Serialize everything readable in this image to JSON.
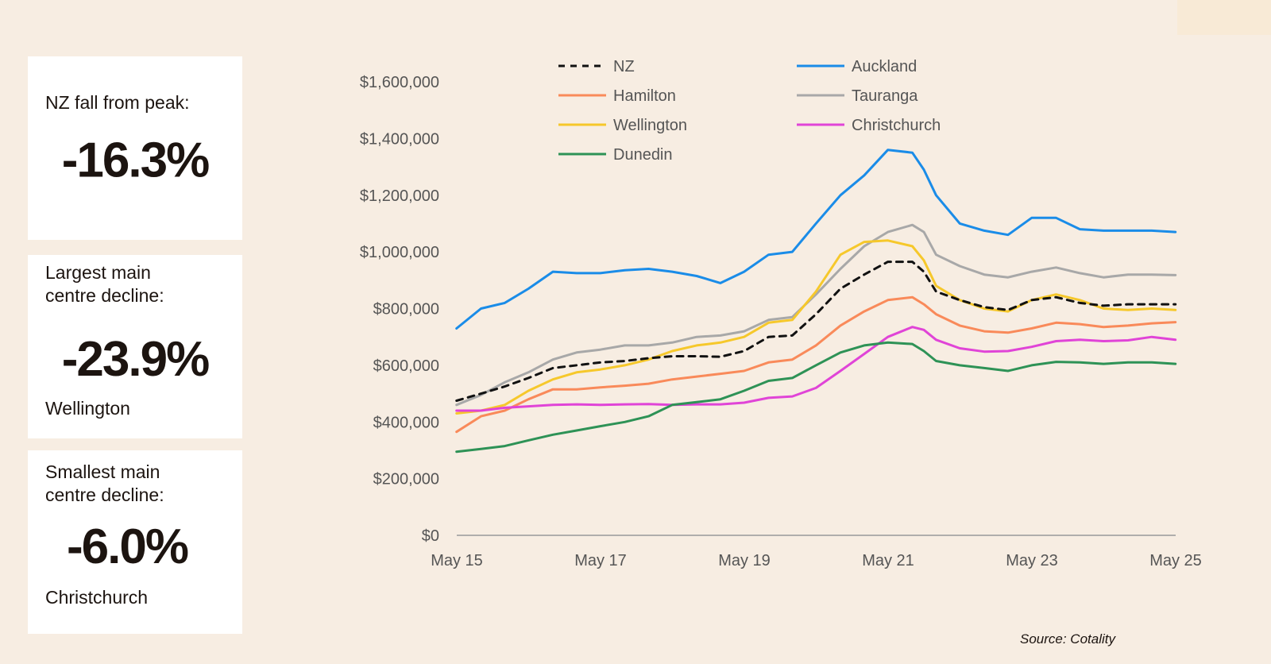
{
  "cards": [
    {
      "label": "NZ fall from peak:",
      "value": "-16.3%",
      "sub": ""
    },
    {
      "label": "Largest main centre decline:",
      "value": "-23.9%",
      "sub": "Wellington"
    },
    {
      "label": "Smallest main centre decline:",
      "value": "-6.0%",
      "sub": "Christchurch"
    }
  ],
  "source": "Source: Cotality",
  "chart_data": {
    "type": "line",
    "x_labels": [
      "May 15",
      "May 17",
      "May 19",
      "May 21",
      "May 23",
      "May 25"
    ],
    "y_ticks": [
      0,
      200000,
      400000,
      600000,
      800000,
      1000000,
      1200000,
      1400000,
      1600000
    ],
    "y_tick_labels": [
      "$0",
      "$200,000",
      "$400,000",
      "$600,000",
      "$800,000",
      "$1,000,000",
      "$1,200,000",
      "$1,400,000",
      "$1,600,000"
    ],
    "ylim": [
      0,
      1600000
    ],
    "x_range": [
      2015.333,
      2025.333
    ],
    "legend_position": "top",
    "grid": false,
    "series": [
      {
        "name": "NZ",
        "color": "#111111",
        "dashed": true,
        "x": [
          2015.33,
          2015.67,
          2016.0,
          2016.33,
          2016.67,
          2017.0,
          2017.33,
          2017.67,
          2018.0,
          2018.33,
          2018.67,
          2019.0,
          2019.33,
          2019.67,
          2020.0,
          2020.33,
          2020.67,
          2021.0,
          2021.33,
          2021.67,
          2021.83,
          2022.0,
          2022.33,
          2022.67,
          2023.0,
          2023.33,
          2023.67,
          2024.0,
          2024.33,
          2024.67,
          2025.0,
          2025.33
        ],
        "y": [
          475000,
          500000,
          525000,
          555000,
          590000,
          600000,
          610000,
          615000,
          625000,
          632000,
          632000,
          630000,
          650000,
          700000,
          705000,
          780000,
          870000,
          920000,
          965000,
          965000,
          930000,
          860000,
          830000,
          805000,
          795000,
          830000,
          840000,
          820000,
          810000,
          815000,
          815000,
          815000
        ]
      },
      {
        "name": "Auckland",
        "color": "#1a8ce8",
        "dashed": false,
        "x": [
          2015.33,
          2015.67,
          2016.0,
          2016.33,
          2016.67,
          2017.0,
          2017.33,
          2017.67,
          2018.0,
          2018.33,
          2018.67,
          2019.0,
          2019.33,
          2019.67,
          2020.0,
          2020.33,
          2020.67,
          2021.0,
          2021.33,
          2021.67,
          2021.83,
          2022.0,
          2022.33,
          2022.67,
          2023.0,
          2023.33,
          2023.67,
          2024.0,
          2024.33,
          2024.67,
          2025.0,
          2025.33
        ],
        "y": [
          730000,
          800000,
          820000,
          870000,
          930000,
          925000,
          925000,
          935000,
          940000,
          930000,
          915000,
          890000,
          930000,
          990000,
          1000000,
          1100000,
          1200000,
          1270000,
          1360000,
          1350000,
          1290000,
          1200000,
          1100000,
          1075000,
          1060000,
          1120000,
          1120000,
          1080000,
          1075000,
          1075000,
          1075000,
          1070000
        ]
      },
      {
        "name": "Hamilton",
        "color": "#f98a5a",
        "dashed": false,
        "x": [
          2015.33,
          2015.67,
          2016.0,
          2016.33,
          2016.67,
          2017.0,
          2017.33,
          2017.67,
          2018.0,
          2018.33,
          2018.67,
          2019.0,
          2019.33,
          2019.67,
          2020.0,
          2020.33,
          2020.67,
          2021.0,
          2021.33,
          2021.67,
          2021.83,
          2022.0,
          2022.33,
          2022.67,
          2023.0,
          2023.33,
          2023.67,
          2024.0,
          2024.33,
          2024.67,
          2025.0,
          2025.33
        ],
        "y": [
          365000,
          420000,
          440000,
          480000,
          515000,
          515000,
          522000,
          528000,
          535000,
          550000,
          560000,
          570000,
          580000,
          610000,
          620000,
          670000,
          740000,
          790000,
          830000,
          840000,
          815000,
          780000,
          740000,
          720000,
          715000,
          730000,
          750000,
          745000,
          735000,
          740000,
          748000,
          752000
        ]
      },
      {
        "name": "Tauranga",
        "color": "#a8a8a8",
        "dashed": false,
        "x": [
          2015.33,
          2015.67,
          2016.0,
          2016.33,
          2016.67,
          2017.0,
          2017.33,
          2017.67,
          2018.0,
          2018.33,
          2018.67,
          2019.0,
          2019.33,
          2019.67,
          2020.0,
          2020.33,
          2020.67,
          2021.0,
          2021.33,
          2021.67,
          2021.83,
          2022.0,
          2022.33,
          2022.67,
          2023.0,
          2023.33,
          2023.67,
          2024.0,
          2024.33,
          2024.67,
          2025.0,
          2025.33
        ],
        "y": [
          460000,
          495000,
          540000,
          575000,
          620000,
          645000,
          655000,
          670000,
          670000,
          680000,
          700000,
          705000,
          720000,
          760000,
          770000,
          850000,
          940000,
          1020000,
          1070000,
          1095000,
          1070000,
          990000,
          950000,
          920000,
          910000,
          930000,
          945000,
          925000,
          910000,
          920000,
          920000,
          918000
        ]
      },
      {
        "name": "Wellington",
        "color": "#f6c82b",
        "dashed": false,
        "x": [
          2015.33,
          2015.67,
          2016.0,
          2016.33,
          2016.67,
          2017.0,
          2017.33,
          2017.67,
          2018.0,
          2018.33,
          2018.67,
          2019.0,
          2019.33,
          2019.67,
          2020.0,
          2020.33,
          2020.67,
          2021.0,
          2021.33,
          2021.67,
          2021.83,
          2022.0,
          2022.33,
          2022.67,
          2023.0,
          2023.33,
          2023.67,
          2024.0,
          2024.33,
          2024.67,
          2025.0,
          2025.33
        ],
        "y": [
          430000,
          440000,
          460000,
          510000,
          550000,
          575000,
          585000,
          600000,
          620000,
          650000,
          670000,
          680000,
          700000,
          750000,
          760000,
          860000,
          990000,
          1035000,
          1040000,
          1020000,
          970000,
          880000,
          830000,
          800000,
          790000,
          830000,
          850000,
          830000,
          800000,
          795000,
          800000,
          795000
        ]
      },
      {
        "name": "Christchurch",
        "color": "#e044d7",
        "dashed": false,
        "x": [
          2015.33,
          2015.67,
          2016.0,
          2016.33,
          2016.67,
          2017.0,
          2017.33,
          2017.67,
          2018.0,
          2018.33,
          2018.67,
          2019.0,
          2019.33,
          2019.67,
          2020.0,
          2020.33,
          2020.67,
          2021.0,
          2021.33,
          2021.67,
          2021.83,
          2022.0,
          2022.33,
          2022.67,
          2023.0,
          2023.33,
          2023.67,
          2024.0,
          2024.33,
          2024.67,
          2025.0,
          2025.33
        ],
        "y": [
          440000,
          440000,
          450000,
          455000,
          460000,
          462000,
          460000,
          462000,
          463000,
          460000,
          462000,
          462000,
          468000,
          485000,
          490000,
          520000,
          580000,
          640000,
          700000,
          735000,
          725000,
          690000,
          660000,
          648000,
          650000,
          665000,
          685000,
          690000,
          685000,
          688000,
          700000,
          690000
        ]
      },
      {
        "name": "Dunedin",
        "color": "#2e9256",
        "dashed": false,
        "x": [
          2015.33,
          2015.67,
          2016.0,
          2016.33,
          2016.67,
          2017.0,
          2017.33,
          2017.67,
          2018.0,
          2018.33,
          2018.67,
          2019.0,
          2019.33,
          2019.67,
          2020.0,
          2020.33,
          2020.67,
          2021.0,
          2021.33,
          2021.67,
          2021.83,
          2022.0,
          2022.33,
          2022.67,
          2023.0,
          2023.33,
          2023.67,
          2024.0,
          2024.33,
          2024.67,
          2025.0,
          2025.33
        ],
        "y": [
          295000,
          305000,
          315000,
          335000,
          355000,
          370000,
          385000,
          400000,
          420000,
          460000,
          470000,
          480000,
          510000,
          545000,
          555000,
          600000,
          645000,
          670000,
          680000,
          675000,
          650000,
          615000,
          600000,
          590000,
          580000,
          600000,
          612000,
          610000,
          605000,
          610000,
          610000,
          605000
        ]
      }
    ]
  }
}
